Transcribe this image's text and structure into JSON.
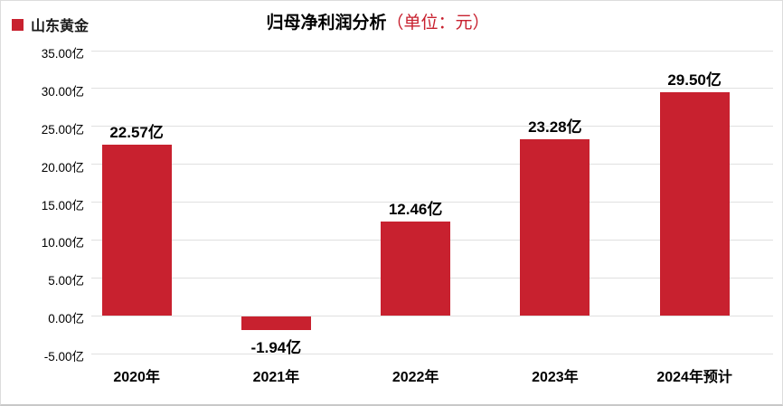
{
  "legend": {
    "label": "山东黄金",
    "swatch_color": "#c8212f"
  },
  "title": {
    "main": "归母净利润分析",
    "unit": "（单位：元）",
    "unit_color": "#c8212f"
  },
  "colors": {
    "bar": "#c8212f",
    "gridline": "#e0e0e0",
    "text": "#000000"
  },
  "chart_data": {
    "type": "bar",
    "title": "归母净利润分析（单位：元）",
    "series_name": "山东黄金",
    "categories": [
      "2020年",
      "2021年",
      "2022年",
      "2023年",
      "2024年预计"
    ],
    "values": [
      22.57,
      -1.94,
      12.46,
      23.28,
      29.5
    ],
    "value_labels": [
      "22.57亿",
      "-1.94亿",
      "12.46亿",
      "23.28亿",
      "29.50亿"
    ],
    "y_ticks": [
      35,
      30,
      25,
      20,
      15,
      10,
      5,
      0,
      -5
    ],
    "y_tick_labels": [
      "35.00亿",
      "30.00亿",
      "25.00亿",
      "20.00亿",
      "15.00亿",
      "10.00亿",
      "5.00亿",
      "0.00亿",
      "-5.00亿"
    ],
    "ylim": [
      -5,
      35
    ],
    "xlabel": "",
    "ylabel": "",
    "grid": true,
    "legend_position": "top-left",
    "bar_color": "#c8212f"
  }
}
